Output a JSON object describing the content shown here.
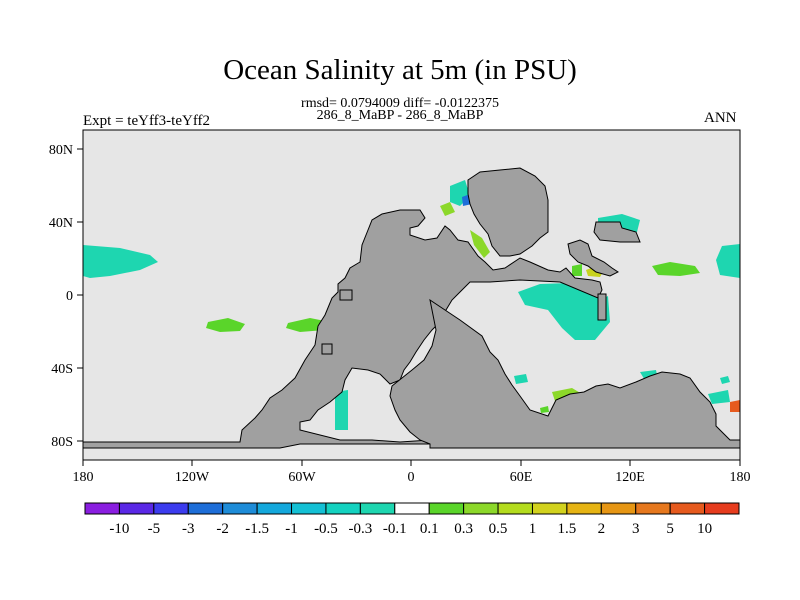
{
  "title": "Ocean Salinity at 5m (in PSU)",
  "stats_line": "rmsd= 0.0794009 diff= -0.0122375",
  "subtitle": "286_8_MaBP - 286_8_MaBP",
  "experiment": "Expt = teYff3-teYff2",
  "season": "ANN",
  "colors": {
    "ocean_background": "#e6e6e6",
    "land": "#a0a0a0",
    "positive_green": "#5ad52a",
    "negative_cyan": "#1ed6b0",
    "light_green": "#8cd82a",
    "yellow": "#c8d21e",
    "blue": "#1e6ed8"
  },
  "map": {
    "x_ticks": [
      "180",
      "120W",
      "60W",
      "0",
      "60E",
      "120E",
      "180"
    ],
    "y_ticks": [
      "80N",
      "40N",
      "0",
      "40S",
      "80S"
    ]
  },
  "colorbar": {
    "labels": [
      "-10",
      "-5",
      "-3",
      "-2",
      "-1.5",
      "-1",
      "-0.5",
      "-0.3",
      "-0.1",
      "0.1",
      "0.3",
      "0.5",
      "1",
      "1.5",
      "2",
      "3",
      "5",
      "10"
    ],
    "colors": [
      "#8a1ee0",
      "#5a28e6",
      "#3c3cee",
      "#1e6ed8",
      "#1e8cd8",
      "#14a8dc",
      "#14c0d4",
      "#14d2c0",
      "#1ed6b0",
      "#ffffff",
      "#5ad52a",
      "#8cd82a",
      "#b4dc1e",
      "#d2d21e",
      "#e6b414",
      "#e69614",
      "#e6781e",
      "#e65a1e",
      "#e63c1e"
    ]
  }
}
